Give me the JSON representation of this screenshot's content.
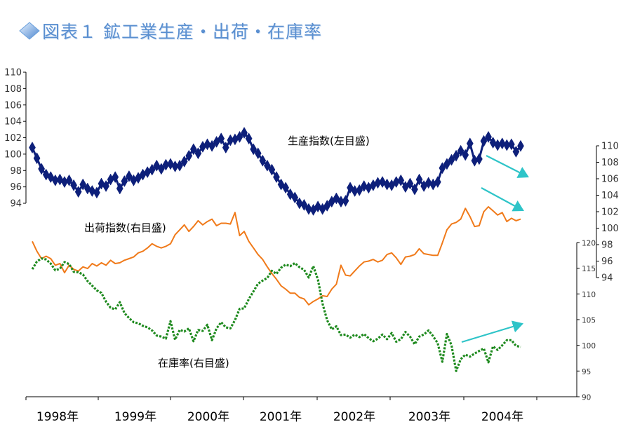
{
  "title": "図表１ 鉱工業生産・出荷・在庫率",
  "colors": {
    "title": "#5a8fd0",
    "production": "#0d1f7a",
    "shipments": "#f07a1a",
    "inventory": "#1e8a1e",
    "arrow": "#2ec4c8",
    "axis": "#000000"
  },
  "chart_data": {
    "type": "line",
    "x_tick_labels": [
      "1998年",
      "1999年",
      "2000年",
      "2001年",
      "2002年",
      "2003年",
      "2004年"
    ],
    "axes": {
      "left": {
        "range": [
          94,
          110
        ],
        "ticks": [
          "94",
          "96",
          "98",
          "100",
          "102",
          "104",
          "106",
          "108",
          "110"
        ]
      },
      "right_upper": {
        "range": [
          94,
          110
        ],
        "ticks": [
          "94",
          "96",
          "98",
          "100",
          "102",
          "104",
          "106",
          "108",
          "110"
        ]
      },
      "right_lower": {
        "range": [
          90,
          120
        ],
        "ticks": [
          "90",
          "95",
          "100",
          "105",
          "110",
          "115",
          "120"
        ]
      }
    },
    "annotations": {
      "production": "生産指数(左目盛)",
      "shipments": "出荷指数(右目盛)",
      "inventory": "在庫率(右目盛)"
    },
    "series": [
      {
        "key": "production",
        "axis": "left",
        "marker": "diamond",
        "values": [
          100.8,
          99.5,
          98.2,
          97.5,
          97.2,
          96.8,
          96.9,
          96.6,
          96.8,
          96.2,
          95.4,
          96.3,
          95.8,
          95.5,
          95.3,
          96.4,
          96.1,
          96.9,
          97.2,
          95.8,
          96.7,
          97.3,
          96.8,
          97.1,
          97.5,
          97.8,
          98.1,
          98.6,
          98.2,
          98.7,
          98.8,
          98.5,
          98.6,
          99.1,
          99.8,
          100.6,
          100.1,
          100.9,
          101.2,
          101.0,
          101.5,
          101.9,
          100.8,
          101.7,
          101.8,
          102.1,
          102.6,
          101.9,
          100.6,
          100.1,
          99.2,
          98.6,
          98.1,
          97.2,
          96.3,
          95.9,
          95.1,
          94.7,
          94.0,
          93.8,
          93.3,
          93.2,
          93.6,
          93.3,
          93.7,
          94.2,
          94.6,
          94.2,
          94.3,
          95.9,
          95.5,
          95.6,
          96.1,
          95.9,
          96.2,
          96.5,
          96.6,
          96.3,
          96.2,
          96.6,
          96.8,
          96.0,
          96.4,
          95.7,
          96.9,
          96.1,
          96.5,
          96.3,
          96.6,
          98.3,
          98.8,
          99.3,
          99.8,
          100.4,
          99.9,
          101.3,
          99.2,
          99.4,
          101.6,
          102.1,
          101.4,
          101.1,
          101.3,
          101.1,
          101.2,
          100.3,
          101.0
        ]
      },
      {
        "key": "shipments",
        "axis": "right_upper",
        "values": [
          98.4,
          97.2,
          96.3,
          96.6,
          96.3,
          95.5,
          95.7,
          94.6,
          95.5,
          95.0,
          94.8,
          95.3,
          95.1,
          95.7,
          95.4,
          95.8,
          95.5,
          96.1,
          95.7,
          95.8,
          96.1,
          96.3,
          96.5,
          97.0,
          97.2,
          97.6,
          98.1,
          97.8,
          97.6,
          97.8,
          98.1,
          99.2,
          99.8,
          100.4,
          99.6,
          100.2,
          100.9,
          100.4,
          100.8,
          101.1,
          100.3,
          100.6,
          100.6,
          100.5,
          101.9,
          99.1,
          99.6,
          98.4,
          97.6,
          96.8,
          96.2,
          95.3,
          94.5,
          93.8,
          93.0,
          92.6,
          92.1,
          92.1,
          91.6,
          91.4,
          90.7,
          91.1,
          91.4,
          91.8,
          91.7,
          92.6,
          93.2,
          95.5,
          94.3,
          94.2,
          94.8,
          95.4,
          95.9,
          96.0,
          96.2,
          95.9,
          96.1,
          96.8,
          97.0,
          96.4,
          95.6,
          96.5,
          96.6,
          96.8,
          97.5,
          96.9,
          96.8,
          96.7,
          96.7,
          98.2,
          99.8,
          100.5,
          100.7,
          101.1,
          102.4,
          101.4,
          100.2,
          100.3,
          102.0,
          102.6,
          102.1,
          101.6,
          101.9,
          100.8,
          101.2,
          100.9,
          101.1
        ]
      },
      {
        "key": "inventory",
        "axis": "right_lower",
        "style": "dotted",
        "values": [
          114.8,
          116.3,
          116.9,
          116.7,
          115.9,
          114.6,
          114.9,
          116.2,
          115.8,
          114.3,
          114.2,
          113.8,
          112.5,
          111.6,
          110.7,
          110.2,
          108.5,
          107.3,
          107.0,
          108.4,
          106.3,
          105.3,
          104.5,
          104.3,
          103.8,
          103.5,
          102.9,
          101.9,
          101.7,
          101.3,
          104.7,
          101.1,
          103.0,
          102.7,
          103.3,
          100.8,
          103.0,
          102.8,
          104.0,
          101.0,
          103.3,
          104.5,
          103.5,
          103.3,
          104.9,
          107.1,
          107.2,
          109.0,
          110.5,
          112.0,
          112.6,
          113.1,
          114.5,
          113.9,
          115.1,
          115.7,
          115.4,
          116.0,
          115.2,
          114.7,
          113.2,
          115.4,
          112.8,
          108.1,
          104.9,
          103.1,
          103.7,
          102.0,
          102.1,
          101.5,
          102.1,
          101.6,
          102.2,
          101.4,
          100.8,
          101.3,
          102.1,
          101.2,
          102.4,
          100.7,
          101.2,
          102.6,
          101.7,
          100.2,
          101.7,
          102.1,
          102.9,
          101.8,
          100.4,
          96.8,
          102.2,
          100.0,
          95.0,
          97.3,
          98.2,
          97.8,
          98.4,
          98.9,
          99.4,
          96.7,
          99.8,
          99.1,
          100.0,
          101.0,
          101.0,
          99.9,
          99.7
        ]
      }
    ]
  }
}
